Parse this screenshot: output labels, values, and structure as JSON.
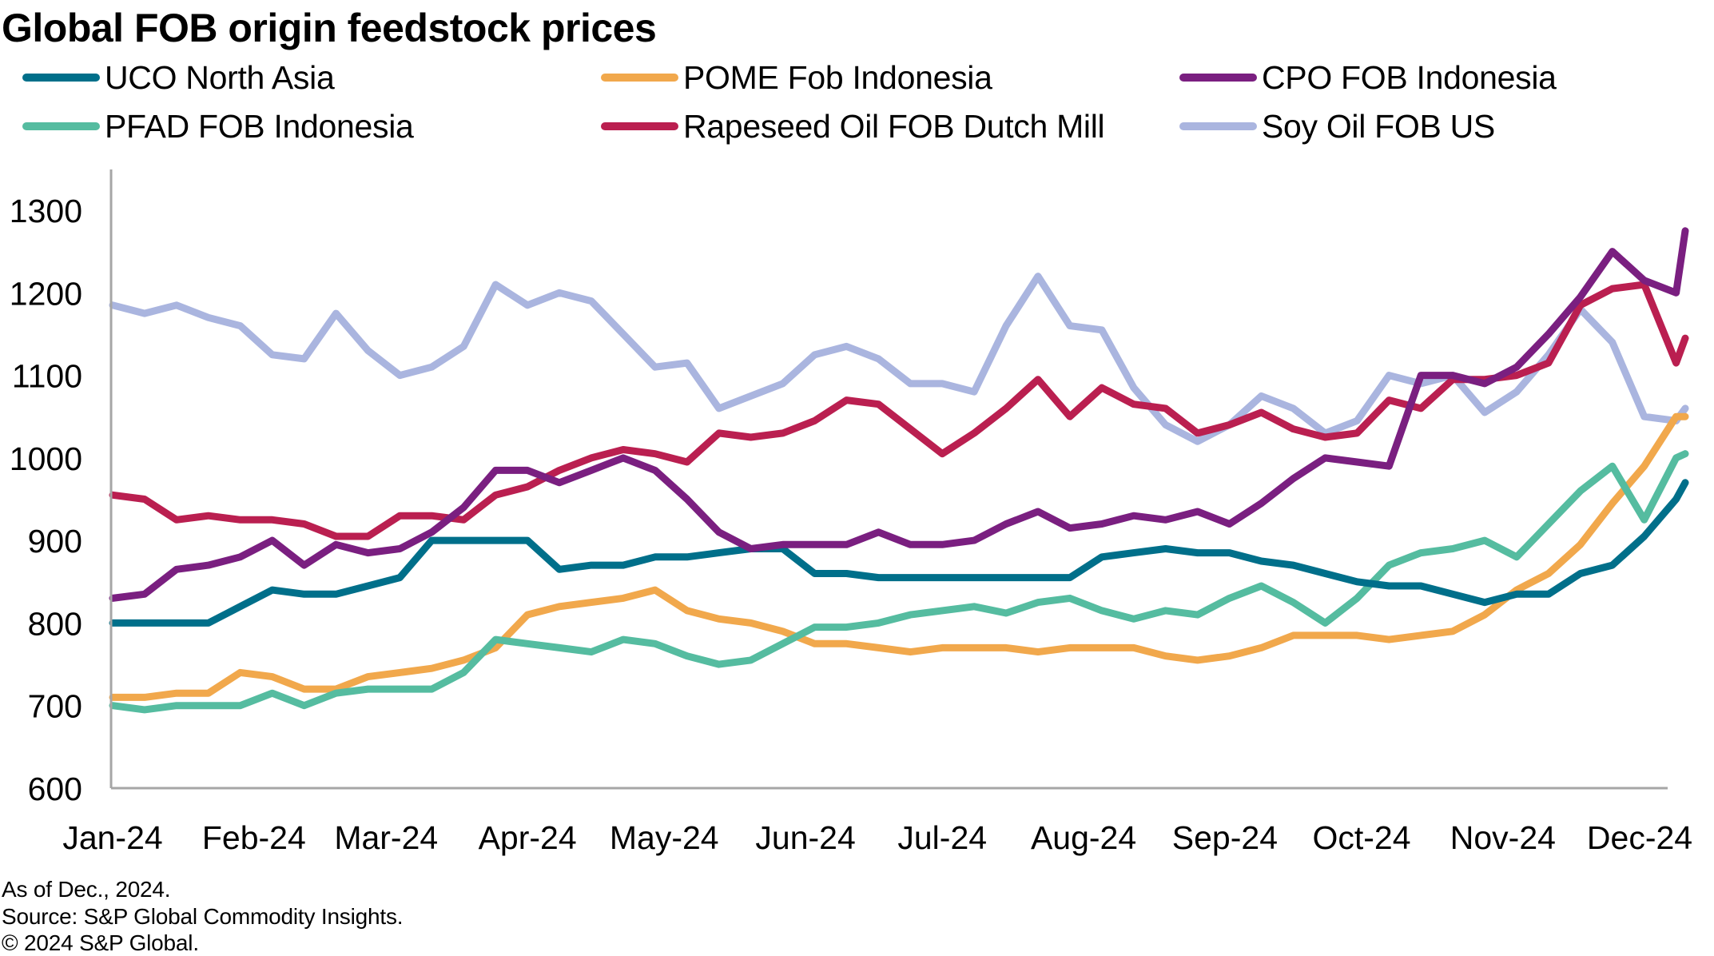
{
  "chart_data": {
    "type": "line",
    "title": "Global FOB origin feedstock prices",
    "xlabel": "",
    "ylabel": "",
    "ylim": [
      600,
      1350
    ],
    "yticks": [
      600,
      700,
      800,
      900,
      1000,
      1100,
      1200,
      1300
    ],
    "xticks": [
      "Jan-24",
      "Feb-24",
      "Mar-24",
      "Apr-24",
      "May-24",
      "Jun-24",
      "Jul-24",
      "Aug-24",
      "Sep-24",
      "Oct-24",
      "Nov-24",
      "Dec-24"
    ],
    "xtick_days": [
      0,
      31,
      60,
      91,
      121,
      152,
      182,
      213,
      244,
      274,
      305,
      335
    ],
    "xrange_days": [
      0,
      345
    ],
    "grid": false,
    "legend_position": "top",
    "x_days": [
      0,
      7,
      14,
      21,
      28,
      35,
      42,
      49,
      56,
      63,
      70,
      77,
      84,
      91,
      98,
      105,
      112,
      119,
      126,
      133,
      140,
      147,
      154,
      161,
      168,
      175,
      182,
      189,
      196,
      203,
      210,
      217,
      224,
      231,
      238,
      245,
      252,
      259,
      266,
      273,
      280,
      287,
      294,
      301,
      308,
      315,
      322,
      329,
      336,
      343,
      345
    ],
    "series": [
      {
        "name": "UCO North Asia",
        "color": "#006f8a",
        "values": [
          800,
          800,
          800,
          800,
          820,
          840,
          835,
          835,
          845,
          855,
          900,
          900,
          900,
          900,
          865,
          870,
          870,
          880,
          880,
          885,
          890,
          890,
          860,
          860,
          855,
          855,
          855,
          855,
          855,
          855,
          855,
          880,
          885,
          890,
          885,
          885,
          875,
          870,
          860,
          850,
          845,
          845,
          835,
          825,
          835,
          835,
          860,
          870,
          905,
          950,
          970
        ]
      },
      {
        "name": "PFAD FOB Indonesia",
        "color": "#55bca0",
        "values": [
          700,
          695,
          700,
          700,
          700,
          715,
          700,
          715,
          720,
          720,
          720,
          740,
          780,
          775,
          770,
          765,
          780,
          775,
          760,
          750,
          755,
          775,
          795,
          795,
          800,
          810,
          815,
          820,
          812,
          825,
          830,
          815,
          805,
          815,
          810,
          830,
          845,
          825,
          800,
          830,
          870,
          885,
          890,
          900,
          880,
          920,
          960,
          990,
          925,
          1000,
          1005
        ]
      },
      {
        "name": "POME Fob Indonesia",
        "color": "#f1a84c",
        "values": [
          710,
          710,
          715,
          715,
          740,
          735,
          720,
          720,
          735,
          740,
          745,
          755,
          770,
          810,
          820,
          825,
          830,
          840,
          815,
          805,
          800,
          790,
          775,
          775,
          770,
          765,
          770,
          770,
          770,
          765,
          770,
          770,
          770,
          760,
          755,
          760,
          770,
          785,
          785,
          785,
          780,
          785,
          790,
          810,
          840,
          860,
          895,
          945,
          990,
          1050,
          1050
        ]
      },
      {
        "name": "Rapeseed Oil FOB Dutch Mill",
        "color": "#ba1f50",
        "values": [
          955,
          950,
          925,
          930,
          925,
          925,
          920,
          905,
          905,
          930,
          930,
          925,
          955,
          965,
          985,
          1000,
          1010,
          1005,
          995,
          1030,
          1025,
          1030,
          1045,
          1070,
          1065,
          1035,
          1005,
          1030,
          1060,
          1095,
          1050,
          1085,
          1065,
          1060,
          1030,
          1040,
          1055,
          1035,
          1025,
          1030,
          1070,
          1060,
          1095,
          1095,
          1100,
          1115,
          1185,
          1205,
          1210,
          1115,
          1145
        ]
      },
      {
        "name": "CPO FOB Indonesia",
        "color": "#7a1f80",
        "values": [
          830,
          835,
          865,
          870,
          880,
          900,
          870,
          895,
          885,
          890,
          910,
          940,
          985,
          985,
          970,
          985,
          1000,
          985,
          950,
          910,
          890,
          895,
          895,
          895,
          910,
          895,
          895,
          900,
          920,
          935,
          915,
          920,
          930,
          925,
          935,
          920,
          945,
          975,
          1000,
          995,
          990,
          1100,
          1100,
          1090,
          1110,
          1150,
          1195,
          1250,
          1215,
          1200,
          1275
        ]
      },
      {
        "name": "Soy Oil FOB US",
        "color": "#aab5df",
        "values": [
          1185,
          1175,
          1185,
          1170,
          1160,
          1125,
          1120,
          1175,
          1130,
          1100,
          1110,
          1135,
          1210,
          1185,
          1200,
          1190,
          1150,
          1110,
          1115,
          1060,
          1075,
          1090,
          1125,
          1135,
          1120,
          1090,
          1090,
          1080,
          1160,
          1220,
          1160,
          1155,
          1085,
          1040,
          1020,
          1040,
          1075,
          1060,
          1030,
          1045,
          1100,
          1090,
          1100,
          1055,
          1080,
          1125,
          1180,
          1140,
          1050,
          1045,
          1060
        ]
      }
    ]
  },
  "footer": {
    "as_of": "As of Dec., 2024.",
    "source": "Source: S&P Global Commodity Insights.",
    "copyright": "© 2024 S&P Global."
  }
}
